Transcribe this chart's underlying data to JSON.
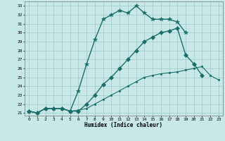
{
  "title": "",
  "xlabel": "Humidex (Indice chaleur)",
  "bg_color": "#c8e8e8",
  "grid_color": "#a0c8c8",
  "line_color": "#1a6e6a",
  "xlim": [
    -0.5,
    23.5
  ],
  "ylim": [
    20.7,
    33.5
  ],
  "xticks": [
    0,
    1,
    2,
    3,
    4,
    5,
    6,
    7,
    8,
    9,
    10,
    11,
    12,
    13,
    14,
    15,
    16,
    17,
    18,
    19,
    20,
    21,
    22,
    23
  ],
  "yticks": [
    21,
    22,
    23,
    24,
    25,
    26,
    27,
    28,
    29,
    30,
    31,
    32,
    33
  ],
  "series": [
    {
      "x": [
        0,
        1,
        2,
        3,
        4,
        5,
        6,
        7,
        8,
        9,
        10,
        11,
        12,
        13,
        14,
        15,
        16,
        17,
        18,
        19
      ],
      "y": [
        21.2,
        21.0,
        21.5,
        21.5,
        21.5,
        21.2,
        23.5,
        26.5,
        29.2,
        31.5,
        32.0,
        32.5,
        32.2,
        33.0,
        32.2,
        31.5,
        31.5,
        31.5,
        31.2,
        30.0
      ],
      "marker": "*",
      "markersize": 4,
      "linewidth": 1.0
    },
    {
      "x": [
        0,
        1,
        2,
        3,
        4,
        5,
        6,
        7,
        8,
        9,
        10,
        11,
        12,
        13,
        14,
        15,
        16,
        17,
        18,
        19,
        20,
        21
      ],
      "y": [
        21.2,
        21.0,
        21.5,
        21.5,
        21.5,
        21.2,
        21.2,
        22.0,
        23.0,
        24.2,
        25.0,
        26.0,
        27.0,
        28.0,
        29.0,
        29.5,
        30.0,
        30.2,
        30.5,
        27.5,
        26.5,
        25.2
      ],
      "marker": "D",
      "markersize": 3,
      "linewidth": 1.0
    },
    {
      "x": [
        0,
        1,
        2,
        3,
        4,
        5,
        6,
        7,
        8,
        9,
        10,
        11,
        12,
        13,
        14,
        15,
        16,
        17,
        18,
        19,
        20,
        21,
        22,
        23
      ],
      "y": [
        21.2,
        21.0,
        21.5,
        21.5,
        21.5,
        21.2,
        21.3,
        21.5,
        22.0,
        22.5,
        23.0,
        23.5,
        24.0,
        24.5,
        25.0,
        25.2,
        25.4,
        25.5,
        25.6,
        25.8,
        26.0,
        26.2,
        25.2,
        24.7
      ],
      "marker": "s",
      "markersize": 2,
      "linewidth": 0.8
    }
  ]
}
